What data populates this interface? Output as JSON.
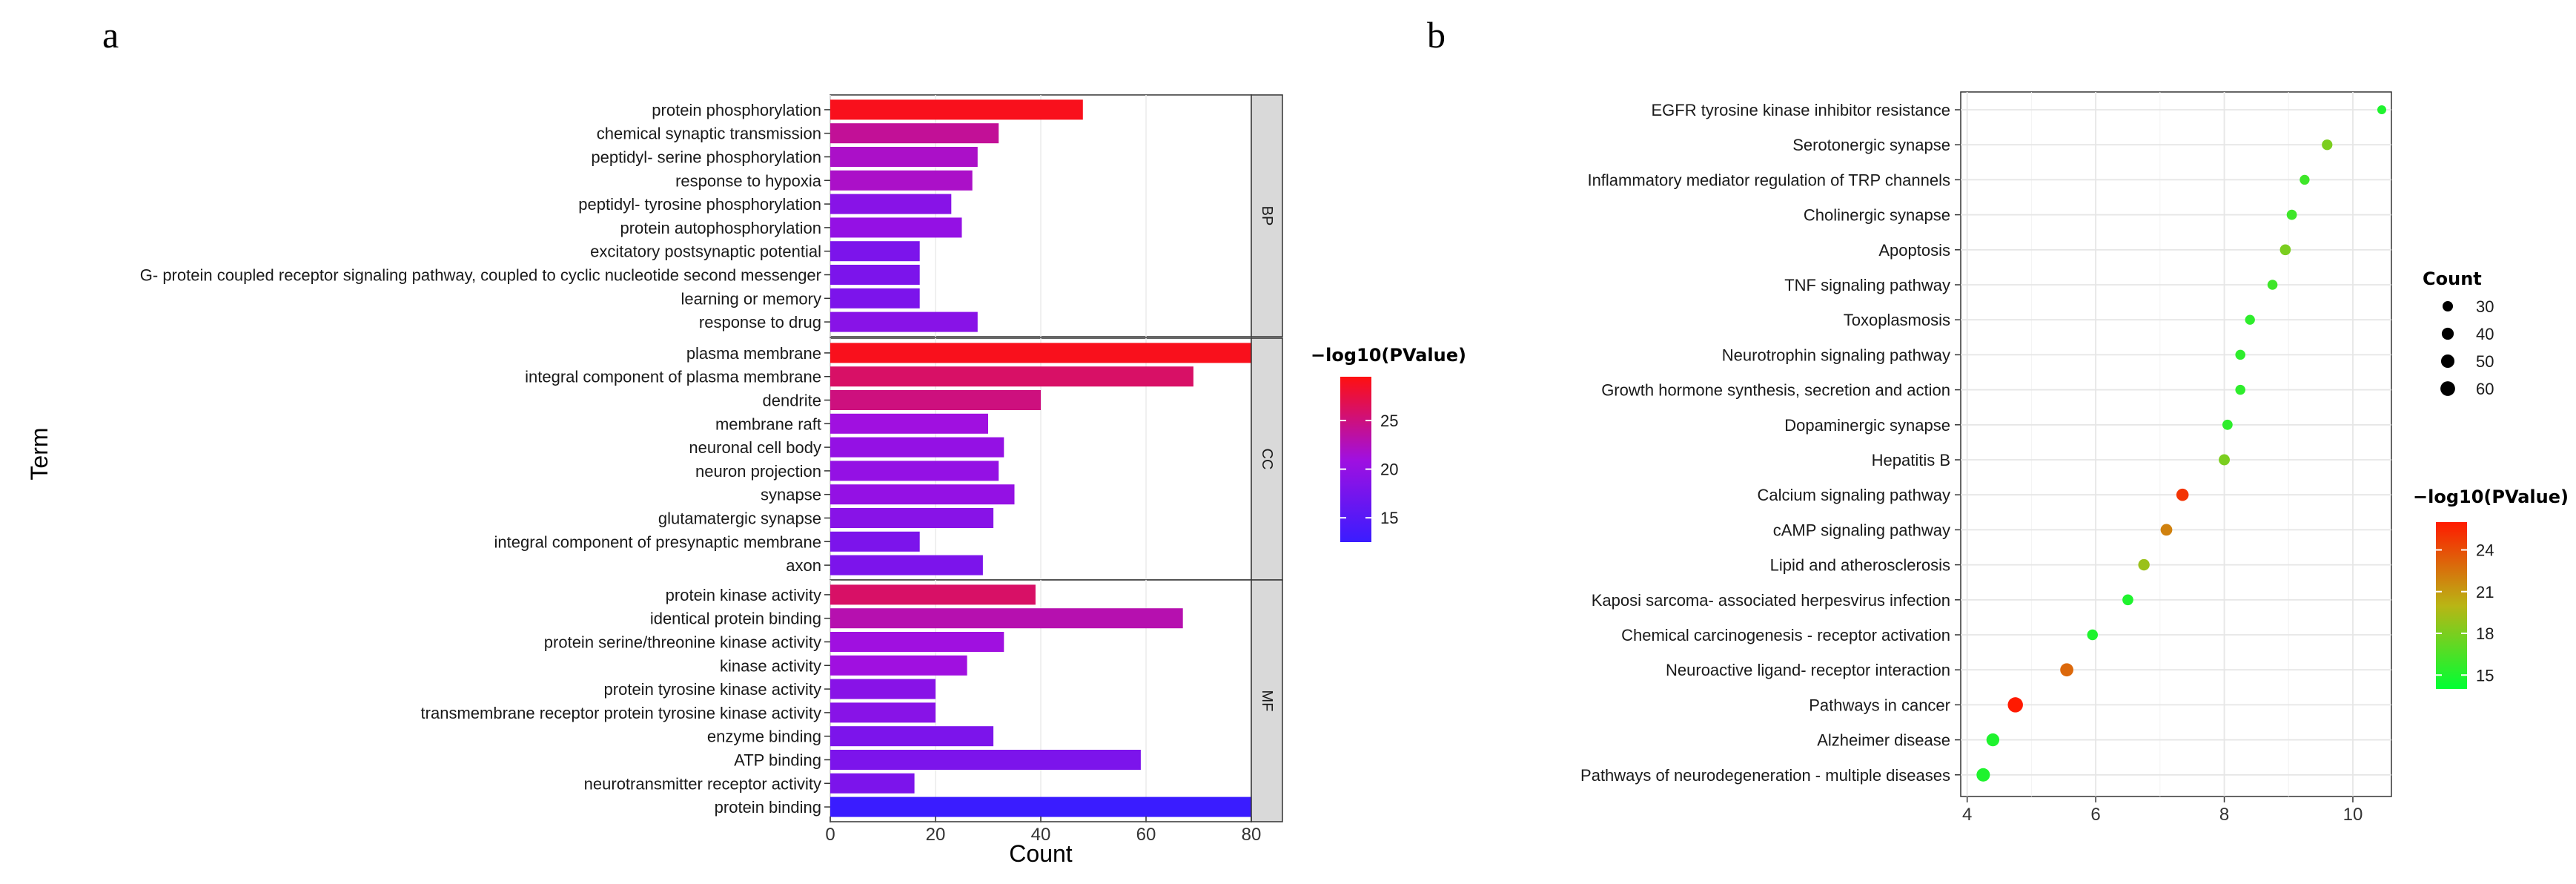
{
  "chart_data": [
    {
      "panel": "a",
      "type": "bar",
      "orientation": "horizontal",
      "xlabel": "Count",
      "ylabel": "Term",
      "xlim": [
        0,
        80
      ],
      "xticks": [
        0,
        20,
        40,
        60,
        80
      ],
      "color_scale": {
        "title": "−log10(PValue)",
        "range": [
          12.5,
          29.5
        ],
        "ticks": [
          15,
          20,
          25
        ],
        "colors": [
          "#3a1cff",
          "#a010e0",
          "#ff1010"
        ]
      },
      "facets": [
        {
          "name": "BP",
          "terms": [
            {
              "term": "protein phosphorylation",
              "count": 48,
              "pvalue": 29
            },
            {
              "term": "chemical synaptic transmission",
              "count": 32,
              "pvalue": 24
            },
            {
              "term": "peptidyl- serine phosphorylation",
              "count": 28,
              "pvalue": 22
            },
            {
              "term": "response to hypoxia",
              "count": 27,
              "pvalue": 22
            },
            {
              "term": "peptidyl- tyrosine phosphorylation",
              "count": 23,
              "pvalue": 19
            },
            {
              "term": "protein autophosphorylation",
              "count": 25,
              "pvalue": 20
            },
            {
              "term": "excitatory postsynaptic potential",
              "count": 17,
              "pvalue": 18
            },
            {
              "term": "G- protein coupled receptor signaling pathway, coupled to cyclic nucleotide second messenger",
              "count": 17,
              "pvalue": 18
            },
            {
              "term": "learning or memory",
              "count": 17,
              "pvalue": 18
            },
            {
              "term": "response to drug",
              "count": 28,
              "pvalue": 19
            }
          ]
        },
        {
          "name": "CC",
          "terms": [
            {
              "term": "plasma membrane",
              "count": 80,
              "pvalue": 29
            },
            {
              "term": "integral component of plasma membrane",
              "count": 69,
              "pvalue": 26
            },
            {
              "term": "dendrite",
              "count": 40,
              "pvalue": 25
            },
            {
              "term": "membrane raft",
              "count": 30,
              "pvalue": 21
            },
            {
              "term": "neuronal cell body",
              "count": 33,
              "pvalue": 20
            },
            {
              "term": "neuron projection",
              "count": 32,
              "pvalue": 20
            },
            {
              "term": "synapse",
              "count": 35,
              "pvalue": 20
            },
            {
              "term": "glutamatergic synapse",
              "count": 31,
              "pvalue": 19
            },
            {
              "term": "integral component of presynaptic membrane",
              "count": 17,
              "pvalue": 18
            },
            {
              "term": "axon",
              "count": 29,
              "pvalue": 18
            }
          ]
        },
        {
          "name": "MF",
          "terms": [
            {
              "term": "protein kinase activity",
              "count": 39,
              "pvalue": 26
            },
            {
              "term": "identical protein binding",
              "count": 67,
              "pvalue": 23
            },
            {
              "term": "protein serine/threonine kinase activity",
              "count": 33,
              "pvalue": 21
            },
            {
              "term": "kinase activity",
              "count": 26,
              "pvalue": 21
            },
            {
              "term": "protein tyrosine kinase activity",
              "count": 20,
              "pvalue": 19
            },
            {
              "term": "transmembrane receptor protein tyrosine kinase activity",
              "count": 20,
              "pvalue": 19
            },
            {
              "term": "enzyme binding",
              "count": 31,
              "pvalue": 18
            },
            {
              "term": "ATP binding",
              "count": 59,
              "pvalue": 18
            },
            {
              "term": "neurotransmitter receptor activity",
              "count": 16,
              "pvalue": 18
            },
            {
              "term": "protein binding",
              "count": 80,
              "pvalue": 12.5
            }
          ]
        }
      ]
    },
    {
      "panel": "b",
      "type": "scatter",
      "xlim": [
        3.9,
        10.6
      ],
      "xticks": [
        4,
        6,
        8,
        10
      ],
      "size_legend": {
        "title": "Count",
        "values": [
          30,
          40,
          50,
          60
        ]
      },
      "color_scale": {
        "title": "−log10(PValue)",
        "range": [
          14,
          26
        ],
        "ticks": [
          15,
          18,
          21,
          24
        ],
        "colors": [
          "#00ff33",
          "#b9b515",
          "#ff1a00"
        ]
      },
      "pathways": [
        {
          "term": "EGFR tyrosine kinase inhibitor resistance",
          "x": 10.45,
          "count": 22,
          "pvalue": 15
        },
        {
          "term": "Serotonergic synapse",
          "x": 9.6,
          "count": 31,
          "pvalue": 18
        },
        {
          "term": "Inflammatory mediator regulation of TRP channels",
          "x": 9.25,
          "count": 27,
          "pvalue": 16
        },
        {
          "term": "Cholinergic synapse",
          "x": 9.05,
          "count": 29,
          "pvalue": 16
        },
        {
          "term": "Apoptosis",
          "x": 8.95,
          "count": 33,
          "pvalue": 18
        },
        {
          "term": "TNF signaling pathway",
          "x": 8.75,
          "count": 28,
          "pvalue": 16
        },
        {
          "term": "Toxoplasmosis",
          "x": 8.4,
          "count": 27,
          "pvalue": 15.5
        },
        {
          "term": "Neurotrophin signaling pathway",
          "x": 8.25,
          "count": 28,
          "pvalue": 15.5
        },
        {
          "term": "Growth hormone synthesis, secretion and action",
          "x": 8.25,
          "count": 28,
          "pvalue": 15.5
        },
        {
          "term": "Dopaminergic synapse",
          "x": 8.05,
          "count": 29,
          "pvalue": 15.5
        },
        {
          "term": "Hepatitis B",
          "x": 8.0,
          "count": 34,
          "pvalue": 18
        },
        {
          "term": "Calcium signaling pathway",
          "x": 7.35,
          "count": 42,
          "pvalue": 25
        },
        {
          "term": "cAMP signaling pathway",
          "x": 7.1,
          "count": 38,
          "pvalue": 22
        },
        {
          "term": "Lipid and atherosclerosis",
          "x": 6.75,
          "count": 36,
          "pvalue": 19
        },
        {
          "term": "Kaposi sarcoma- associated herpesvirus infection",
          "x": 6.5,
          "count": 33,
          "pvalue": 15
        },
        {
          "term": "Chemical carcinogenesis -  receptor activation",
          "x": 5.95,
          "count": 32,
          "pvalue": 15
        },
        {
          "term": "Neuroactive ligand- receptor interaction",
          "x": 5.55,
          "count": 48,
          "pvalue": 23
        },
        {
          "term": "Pathways in cancer",
          "x": 4.75,
          "count": 64,
          "pvalue": 26
        },
        {
          "term": "Alzheimer disease",
          "x": 4.4,
          "count": 46,
          "pvalue": 15
        },
        {
          "term": "Pathways of neurodegeneration -  multiple diseases",
          "x": 4.25,
          "count": 50,
          "pvalue": 15
        }
      ]
    }
  ]
}
